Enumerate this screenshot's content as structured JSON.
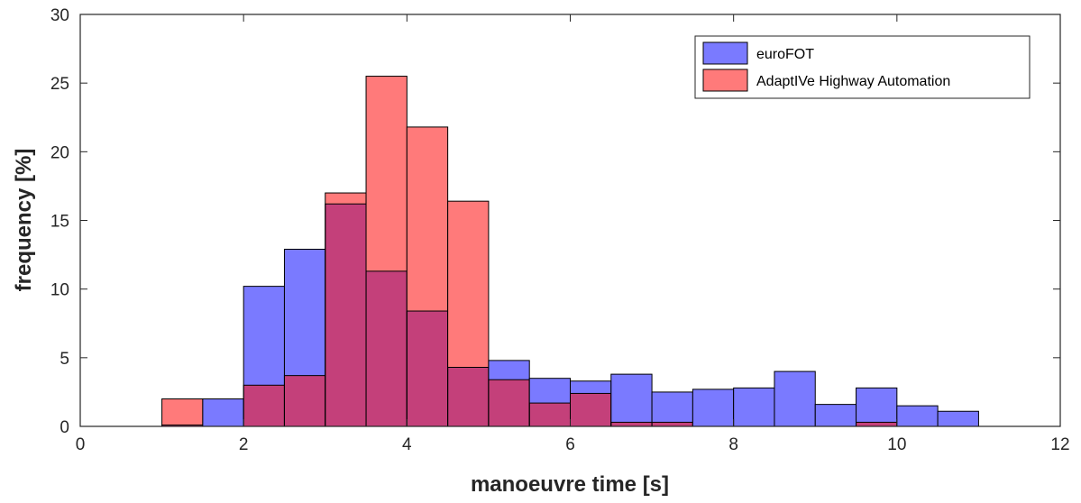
{
  "chart_data": {
    "type": "bar",
    "xlabel": "manoeuvre time [s]",
    "ylabel": "frequency [%]",
    "xlim": [
      0,
      12
    ],
    "ylim": [
      0,
      30
    ],
    "xticks": [
      "0",
      "2",
      "4",
      "6",
      "8",
      "10",
      "12"
    ],
    "yticks": [
      "0",
      "5",
      "10",
      "15",
      "20",
      "25",
      "30"
    ],
    "bin_edges": [
      1.0,
      1.5,
      2.0,
      2.5,
      3.0,
      3.5,
      4.0,
      4.5,
      5.0,
      5.5,
      6.0,
      6.5,
      7.0,
      7.5,
      8.0,
      8.5,
      9.0,
      9.5,
      10.0,
      10.5,
      11.0
    ],
    "legend_position": "top-right",
    "grid": false,
    "series": [
      {
        "name": "euroFOT",
        "color": "#7a7aff",
        "values": [
          0.1,
          2.0,
          10.2,
          12.9,
          16.2,
          11.3,
          8.4,
          4.3,
          4.8,
          3.5,
          3.3,
          3.8,
          2.5,
          2.7,
          2.8,
          4.0,
          1.6,
          2.8,
          1.5,
          1.1
        ]
      },
      {
        "name": "AdaptIVe Highway Automation",
        "color": "#ff7a7a",
        "values": [
          2.0,
          0.0,
          3.0,
          3.7,
          17.0,
          25.5,
          21.8,
          16.4,
          3.4,
          1.7,
          2.4,
          0.3,
          0.3,
          0.0,
          0.0,
          0.0,
          0.0,
          0.3,
          0.0,
          0.0
        ]
      }
    ],
    "overlap_color": "#c4407a"
  }
}
